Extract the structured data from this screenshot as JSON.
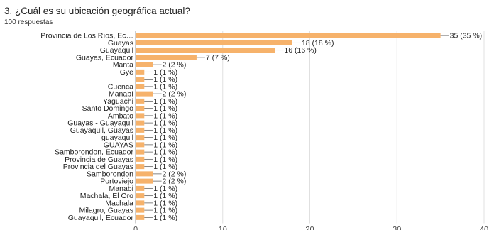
{
  "header": {
    "title": "3. ¿Cuál es su ubicación geográfica actual?",
    "subtitle": "100 respuestas"
  },
  "colors": {
    "bar": "#f6b26b",
    "grid": "#e0e0e0",
    "axis": "#9e9e9e",
    "leader": "#666666"
  },
  "chart_data": {
    "type": "bar",
    "orientation": "horizontal",
    "title": "3. ¿Cuál es su ubicación geográfica actual?",
    "subtitle": "100 respuestas",
    "categories": [
      "Provincia de Los Ríos, Ec…",
      "Guayas",
      "Guayaquil",
      "Guayas, Ecuador",
      "Manta",
      "Gye",
      "",
      "Cuenca",
      "Manabí",
      "Yaguachi",
      "Santo Domingo",
      "Ambato",
      "Guayas - Guayaquil",
      "Guayaquil, Guayas",
      "guayaquil",
      "GUAYAS",
      "Samborondon, Ecuador",
      "Provincia de Guayas",
      "Provincia del Guayas",
      "Samborondon",
      "Portoviejo",
      "Manabi",
      "Machala, El Oro",
      "Machala",
      "Milagro, Guayas",
      "Guayaquil, Ecuador"
    ],
    "values": [
      35,
      18,
      16,
      7,
      2,
      1,
      1,
      1,
      2,
      1,
      1,
      1,
      1,
      1,
      1,
      1,
      1,
      1,
      1,
      2,
      2,
      1,
      1,
      1,
      1,
      1
    ],
    "value_labels": [
      "35 (35 %)",
      "18 (18 %)",
      "16 (16 %)",
      "7 (7 %)",
      "2 (2 %)",
      "1 (1 %)",
      "1 (1 %)",
      "1 (1 %)",
      "2 (2 %)",
      "1 (1 %)",
      "1 (1 %)",
      "1 (1 %)",
      "1 (1 %)",
      "1 (1 %)",
      "1 (1 %)",
      "1 (1 %)",
      "1 (1 %)",
      "1 (1 %)",
      "1 (1 %)",
      "2 (2 %)",
      "2 (2 %)",
      "1 (1 %)",
      "1 (1 %)",
      "1 (1 %)",
      "1 (1 %)",
      "1 (1 %)"
    ],
    "xlim": [
      0,
      40
    ],
    "xticks": [
      "0",
      "10",
      "20",
      "30",
      "40"
    ],
    "grid": true,
    "legend": "none"
  }
}
